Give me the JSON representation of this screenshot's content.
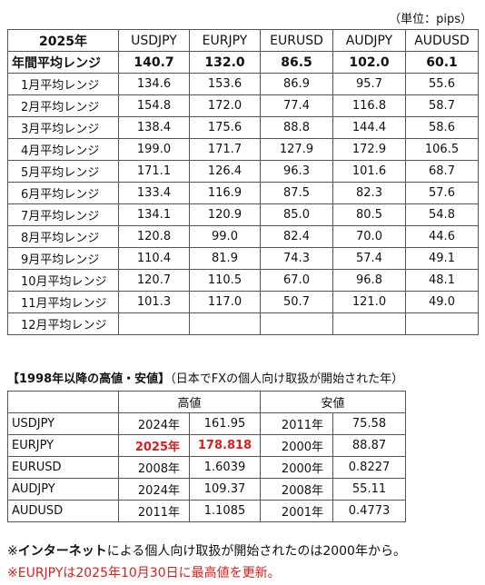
{
  "unit_note": "（単位：pips）",
  "range_table": {
    "year_header": "2025年",
    "pairs": [
      "USDJPY",
      "EURJPY",
      "EURUSD",
      "AUDJPY",
      "AUDUSD"
    ],
    "annual": {
      "label": "年間平均レンジ",
      "values": [
        "140.7",
        "132.0",
        "86.5",
        "102.0",
        "60.1"
      ]
    },
    "months": [
      {
        "label": "1月平均レンジ",
        "values": [
          "134.6",
          "153.6",
          "86.9",
          "95.7",
          "55.6"
        ]
      },
      {
        "label": "2月平均レンジ",
        "values": [
          "154.8",
          "172.0",
          "77.4",
          "116.8",
          "58.7"
        ]
      },
      {
        "label": "3月平均レンジ",
        "values": [
          "138.4",
          "175.6",
          "88.8",
          "144.4",
          "58.6"
        ]
      },
      {
        "label": "4月平均レンジ",
        "values": [
          "199.0",
          "171.7",
          "127.9",
          "172.9",
          "106.5"
        ]
      },
      {
        "label": "5月平均レンジ",
        "values": [
          "171.1",
          "126.4",
          "96.3",
          "101.6",
          "68.7"
        ]
      },
      {
        "label": "6月平均レンジ",
        "values": [
          "133.4",
          "116.9",
          "87.5",
          "82.3",
          "57.6"
        ]
      },
      {
        "label": "7月平均レンジ",
        "values": [
          "134.1",
          "120.9",
          "85.0",
          "80.5",
          "54.8"
        ]
      },
      {
        "label": "8月平均レンジ",
        "values": [
          "120.8",
          "99.0",
          "82.4",
          "70.0",
          "44.6"
        ]
      },
      {
        "label": "9月平均レンジ",
        "values": [
          "110.4",
          "81.9",
          "74.3",
          "57.4",
          "49.1"
        ]
      },
      {
        "label": "10月平均レンジ",
        "values": [
          "120.7",
          "110.5",
          "67.0",
          "96.8",
          "48.1"
        ]
      },
      {
        "label": "11月平均レンジ",
        "values": [
          "101.3",
          "117.0",
          "50.7",
          "121.0",
          "49.0"
        ]
      },
      {
        "label": "12月平均レンジ",
        "values": [
          "",
          "",
          "",
          "",
          ""
        ]
      }
    ]
  },
  "since_section": {
    "title_bold": "【1998年以降の高値・安値】",
    "title_normal": "（日本でFXの個人向け取扱が開始された年）",
    "high_header": "高値",
    "low_header": "安値",
    "rows": [
      {
        "pair": "USDJPY",
        "high_year": "2024年",
        "high_value": "161.95",
        "low_year": "2011年",
        "low_value": "75.58"
      },
      {
        "pair": "EURJPY",
        "high_year": "2025年",
        "high_value": "178.818",
        "low_year": "2000年",
        "low_value": "88.87"
      },
      {
        "pair": "EURUSD",
        "high_year": "2008年",
        "high_value": "1.6039",
        "low_year": "2000年",
        "low_value": "0.8227"
      },
      {
        "pair": "AUDJPY",
        "high_year": "2024年",
        "high_value": "109.37",
        "low_year": "2008年",
        "low_value": "55.11"
      },
      {
        "pair": "AUDUSD",
        "high_year": "2011年",
        "high_value": "1.1085",
        "low_year": "2001年",
        "low_value": "0.4773"
      }
    ]
  },
  "notes": {
    "note1_prefix": "※",
    "note1_bold": "インターネット",
    "note1_rest": "による個人向け取扱が開始されたのは2000年から。",
    "note2": "※EURJPYは2025年10月30日に最高値を更新。"
  },
  "colors": {
    "highlight_red": "#e01b1b",
    "border": "#555555"
  }
}
